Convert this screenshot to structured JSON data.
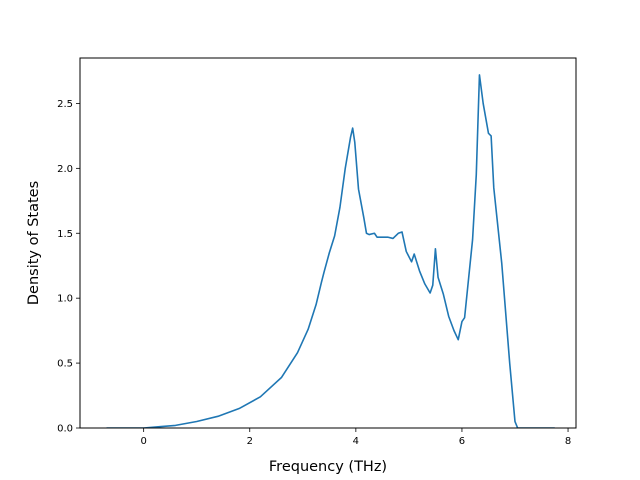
{
  "chart_data": {
    "type": "line",
    "title": "",
    "xlabel": "Frequency (THz)",
    "ylabel": "Density of States",
    "xlim": [
      -1.2,
      8.15
    ],
    "ylim": [
      0,
      2.85
    ],
    "xticks": [
      0,
      2,
      4,
      6,
      8
    ],
    "xtick_labels": [
      "0",
      "2",
      "4",
      "6",
      "8"
    ],
    "yticks": [
      0.0,
      0.5,
      1.0,
      1.5,
      2.0,
      2.5
    ],
    "ytick_labels": [
      "0.0",
      "0.5",
      "1.0",
      "1.5",
      "2.0",
      "2.5"
    ],
    "grid": false,
    "legend": "none",
    "series": [
      {
        "color": "#1f77b4",
        "x": [
          -0.7,
          0.0,
          0.3,
          0.6,
          1.0,
          1.4,
          1.8,
          2.2,
          2.6,
          2.9,
          3.1,
          3.25,
          3.35,
          3.4,
          3.5,
          3.6,
          3.7,
          3.8,
          3.9,
          3.94,
          3.98,
          4.05,
          4.15,
          4.2,
          4.25,
          4.35,
          4.4,
          4.5,
          4.6,
          4.7,
          4.8,
          4.87,
          4.95,
          5.05,
          5.1,
          5.2,
          5.3,
          5.4,
          5.45,
          5.5,
          5.55,
          5.65,
          5.75,
          5.85,
          5.93,
          6.0,
          6.05,
          6.1,
          6.2,
          6.27,
          6.33,
          6.4,
          6.5,
          6.55,
          6.6,
          6.75,
          6.9,
          7.0,
          7.05,
          7.3,
          7.75
        ],
        "y": [
          0.0,
          0.0,
          0.01,
          0.02,
          0.05,
          0.09,
          0.15,
          0.24,
          0.39,
          0.58,
          0.76,
          0.95,
          1.12,
          1.2,
          1.35,
          1.48,
          1.7,
          2.0,
          2.24,
          2.31,
          2.2,
          1.84,
          1.62,
          1.5,
          1.49,
          1.5,
          1.47,
          1.47,
          1.47,
          1.46,
          1.5,
          1.51,
          1.36,
          1.28,
          1.34,
          1.21,
          1.11,
          1.04,
          1.1,
          1.38,
          1.16,
          1.03,
          0.86,
          0.75,
          0.68,
          0.82,
          0.85,
          1.05,
          1.45,
          1.95,
          2.72,
          2.5,
          2.27,
          2.25,
          1.85,
          1.27,
          0.5,
          0.05,
          0.0,
          0.0,
          0.0
        ]
      }
    ]
  }
}
